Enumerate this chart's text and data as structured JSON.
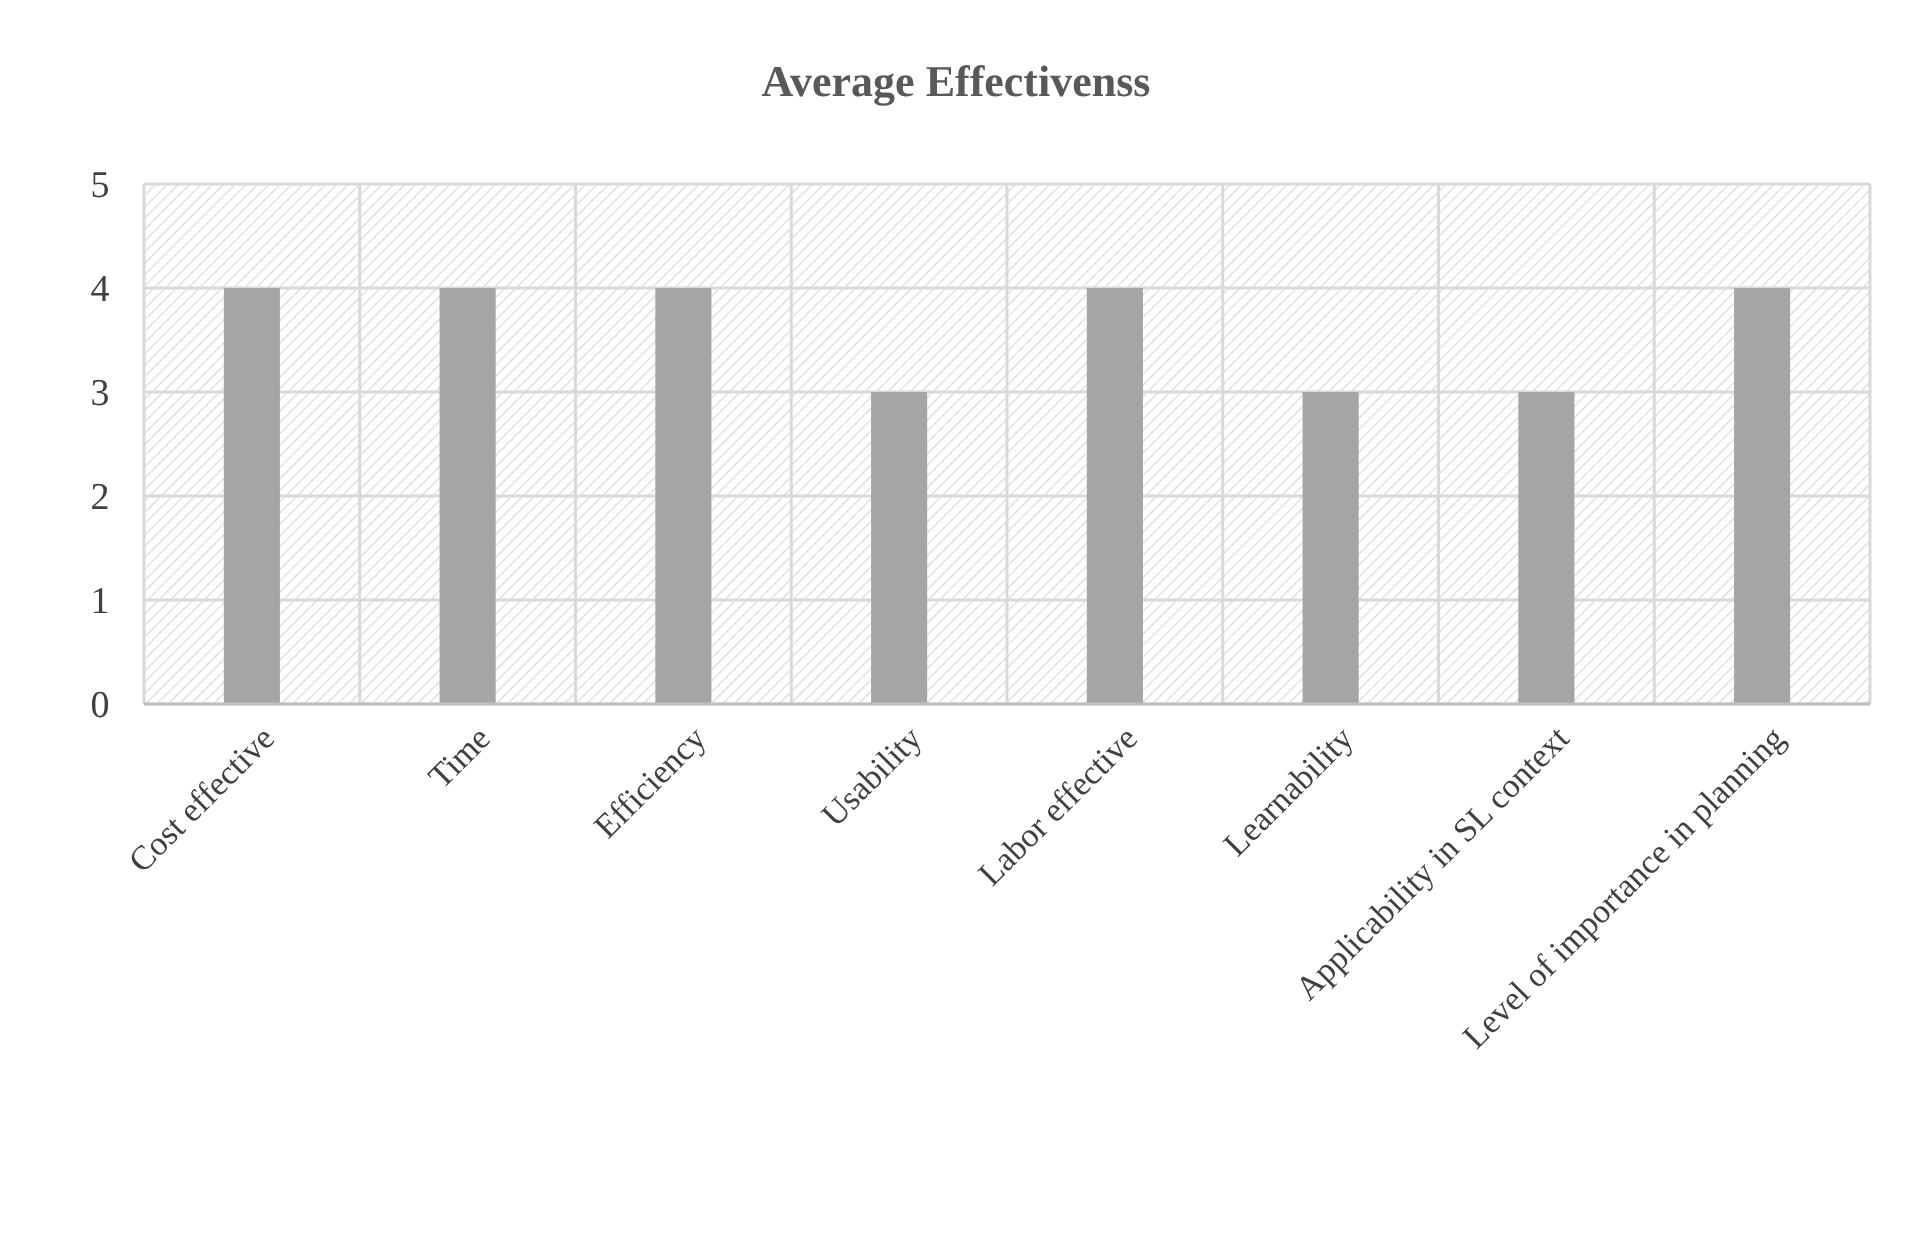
{
  "chart_data": {
    "type": "bar",
    "title": "Average Effectivenss",
    "categories": [
      "Cost effective",
      "Time",
      "Efficiency",
      "Usability",
      "Labor effective",
      "Learnability",
      "Applicability in SL context",
      "Level of importance in planning"
    ],
    "values": [
      4,
      4,
      4,
      3,
      4,
      3,
      3,
      4
    ],
    "color": "#a5a5a5",
    "ylim": [
      0,
      5
    ],
    "yticks": [
      0,
      1,
      2,
      3,
      4,
      5
    ],
    "grid": true
  }
}
